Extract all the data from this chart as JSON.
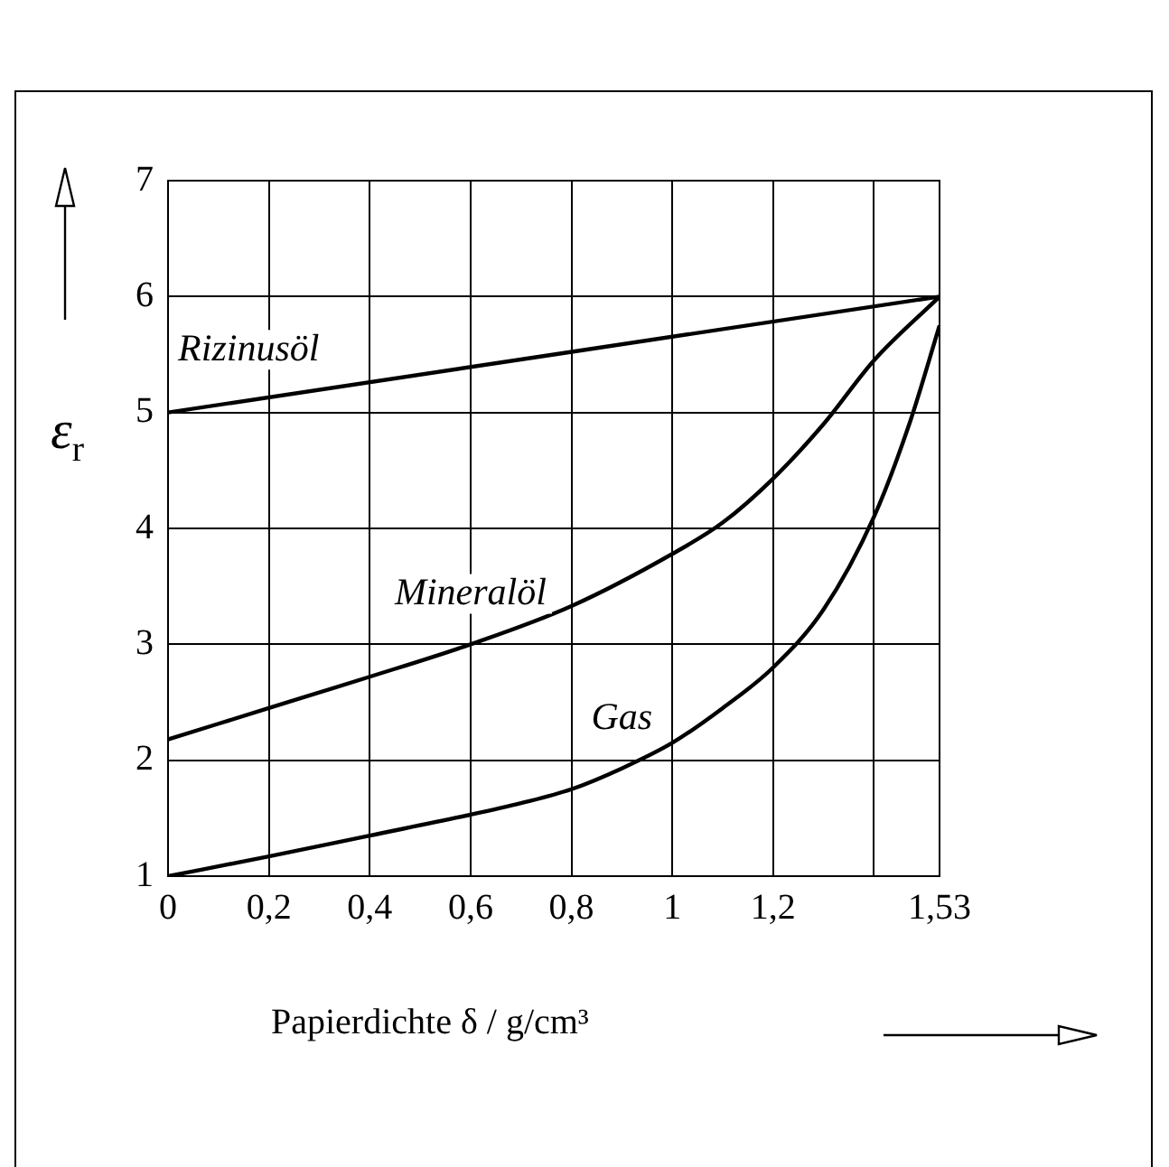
{
  "chart_data": {
    "type": "line",
    "xlabel": "Papierdichte δ / g/cm³",
    "ylabel": "ε$_{r}$",
    "xlim": [
      0,
      1.53
    ],
    "xticks": [
      0,
      {
        "value": 0.2,
        "label": "0,2"
      },
      {
        "value": 0.4,
        "label": "0,4"
      },
      {
        "value": 0.6,
        "label": "0,6"
      },
      {
        "value": 0.8,
        "label": "0,8"
      },
      1,
      {
        "value": 1.2,
        "label": "1,2"
      },
      {
        "value": 1.4,
        "label": null
      },
      {
        "value": 1.53,
        "label": "1,53"
      }
    ],
    "ylim": [
      1,
      7
    ],
    "yticks": [
      1,
      2,
      3,
      4,
      5,
      6,
      7
    ],
    "grid": true,
    "legend": false,
    "marker": "none",
    "line_style": "solid",
    "series": [
      {
        "name": "Rizinusöl",
        "color": "#000000",
        "x": [
          0,
          1.53
        ],
        "values": [
          5,
          6
        ]
      },
      {
        "name": "Mineralöl",
        "color": "#000000",
        "x": [
          0,
          0.2,
          0.4,
          0.6,
          0.8,
          1.0,
          1.1,
          1.2,
          1.3,
          1.4,
          1.53
        ],
        "values": [
          2.18,
          2.45,
          2.72,
          3.0,
          3.33,
          3.78,
          4.05,
          4.43,
          4.9,
          5.45,
          6
        ]
      },
      {
        "name": "Gas",
        "color": "#000000",
        "x": [
          0,
          0.2,
          0.4,
          0.6,
          0.7,
          0.8,
          0.9,
          1.0,
          1.1,
          1.2,
          1.3,
          1.4,
          1.47,
          1.53
        ],
        "values": [
          1,
          1.17,
          1.35,
          1.53,
          1.63,
          1.75,
          1.93,
          2.15,
          2.45,
          2.8,
          3.3,
          4.1,
          4.9,
          5.75
        ]
      }
    ]
  }
}
